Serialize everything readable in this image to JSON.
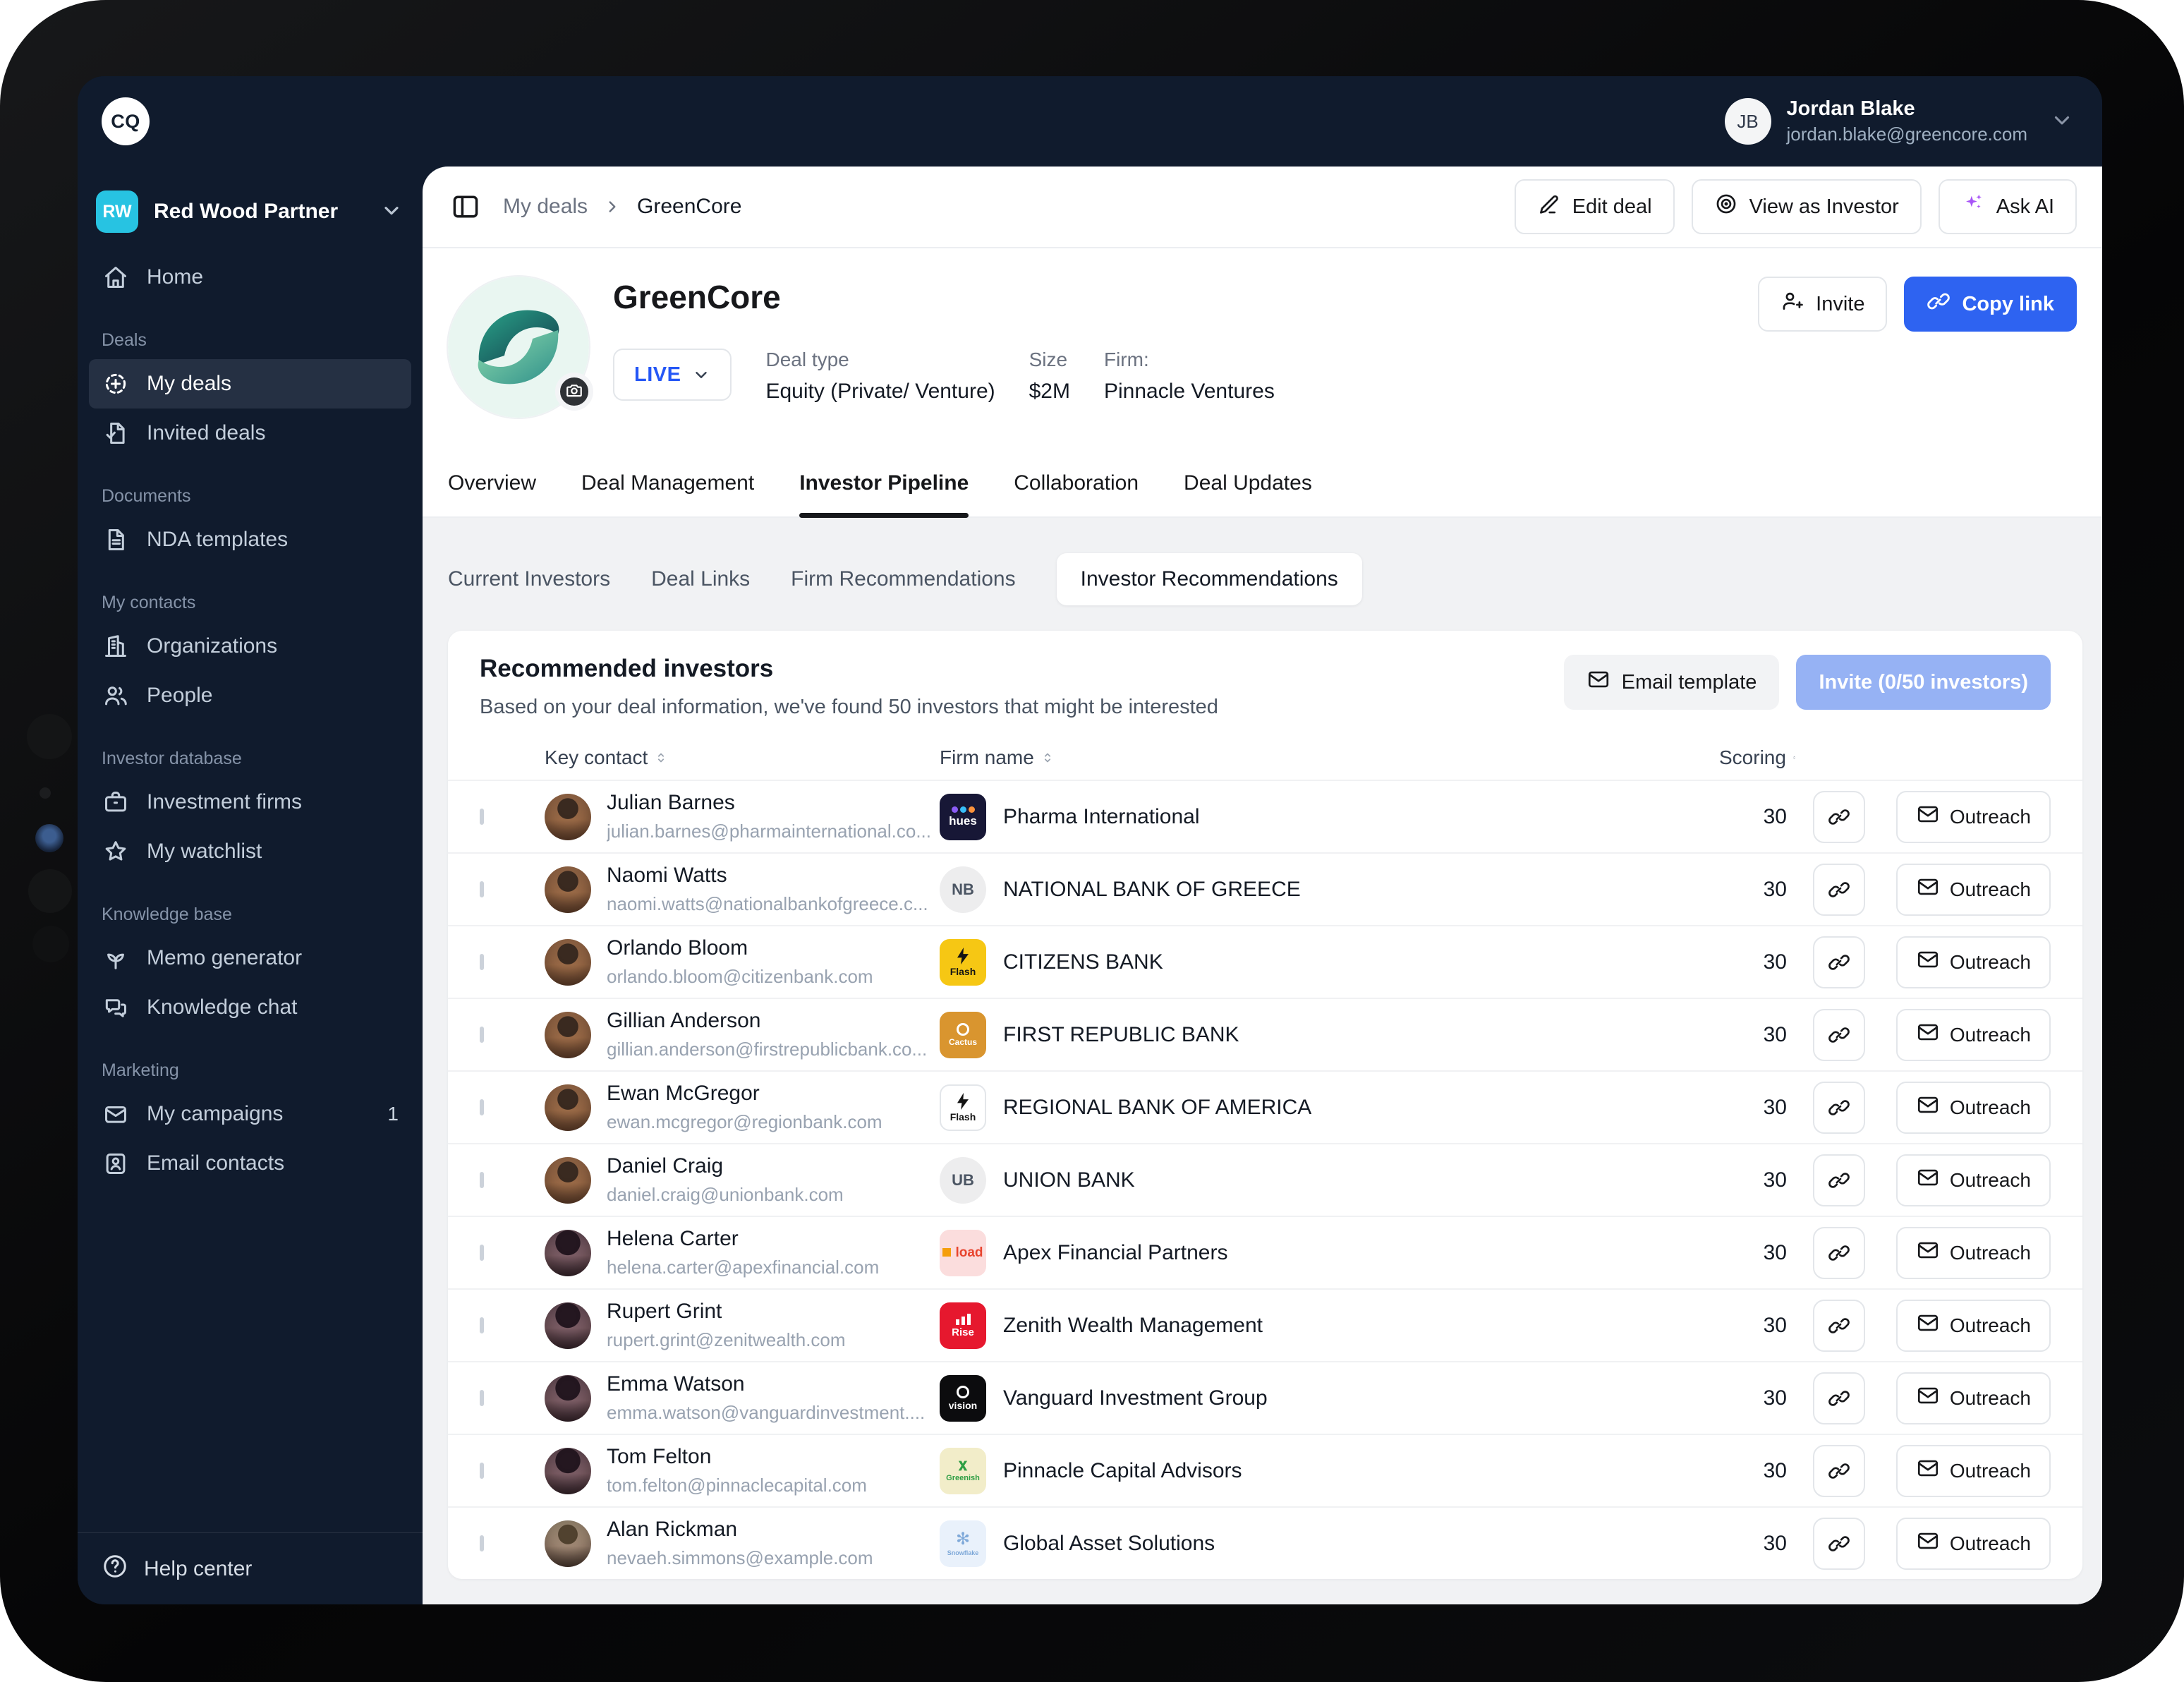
{
  "topbar": {
    "logo": "CQ",
    "user": {
      "initials": "JB",
      "name": "Jordan Blake",
      "email": "jordan.blake@greencore.com"
    }
  },
  "sidebar": {
    "workspace": {
      "initials": "RW",
      "name": "Red Wood Partner"
    },
    "sections": [
      {
        "label": "",
        "items": [
          {
            "icon": "home",
            "label": "Home"
          }
        ]
      },
      {
        "label": "Deals",
        "items": [
          {
            "icon": "deal",
            "label": "My deals",
            "active": true
          },
          {
            "icon": "invited",
            "label": "Invited deals"
          }
        ]
      },
      {
        "label": "Documents",
        "items": [
          {
            "icon": "doc",
            "label": "NDA templates"
          }
        ]
      },
      {
        "label": "My contacts",
        "items": [
          {
            "icon": "org",
            "label": "Organizations"
          },
          {
            "icon": "people",
            "label": "People"
          }
        ]
      },
      {
        "label": "Investor database",
        "items": [
          {
            "icon": "briefcase",
            "label": "Investment firms"
          },
          {
            "icon": "star",
            "label": "My watchlist"
          }
        ]
      },
      {
        "label": "Knowledge base",
        "items": [
          {
            "icon": "plant",
            "label": "Memo generator"
          },
          {
            "icon": "chat",
            "label": "Knowledge chat"
          }
        ]
      },
      {
        "label": "Marketing",
        "items": [
          {
            "icon": "mail",
            "label": "My campaigns",
            "badge": "1"
          },
          {
            "icon": "contact",
            "label": "Email contacts"
          }
        ]
      }
    ],
    "footer": {
      "label": "Help center"
    }
  },
  "breadcrumb": {
    "parent": "My deals",
    "current": "GreenCore"
  },
  "header_actions": {
    "edit": "Edit deal",
    "view": "View as Investor",
    "ask": "Ask AI"
  },
  "deal": {
    "name": "GreenCore",
    "status": "LIVE",
    "meta": [
      {
        "label": "Deal type",
        "value": "Equity (Private/ Venture)"
      },
      {
        "label": "Size",
        "value": "$2M"
      },
      {
        "label": "Firm:",
        "value": "Pinnacle Ventures"
      }
    ],
    "invite": "Invite",
    "copy_link": "Copy link"
  },
  "tabs": {
    "items": [
      "Overview",
      "Deal Management",
      "Investor Pipeline",
      "Collaboration",
      "Deal Updates"
    ],
    "active": 2
  },
  "subtabs": {
    "items": [
      "Current Investors",
      "Deal Links",
      "Firm Recommendations",
      "Investor Recommendations"
    ],
    "active": 3
  },
  "card": {
    "title": "Recommended investors",
    "subtitle": "Based on your deal information, we've found 50 investors that might be interested",
    "email_template": "Email template",
    "invite_button": "Invite (0/50 investors)"
  },
  "table": {
    "columns": [
      "Key contact",
      "Firm name",
      "Scoring"
    ],
    "outreach_label": "Outreach",
    "rows": [
      {
        "name": "Julian Barnes",
        "email": "julian.barnes@pharmainternational.co...",
        "firm": "Pharma International",
        "score": "30",
        "avatar": "man-a",
        "logo": {
          "shape": "square",
          "bg": "#171736",
          "color": "#ffffff",
          "text": "hues",
          "glyph": "petals",
          "fsize": 17
        }
      },
      {
        "name": "Naomi Watts",
        "email": "naomi.watts@nationalbankofgreece.c...",
        "firm": "NATIONAL BANK OF GREECE",
        "score": "30",
        "avatar": "man-a",
        "logo": {
          "shape": "circle",
          "bg": "#ededee",
          "color": "#4b5563",
          "text": "NB",
          "fsize": 22
        }
      },
      {
        "name": "Orlando Bloom",
        "email": "orlando.bloom@citizenbank.com",
        "firm": "CITIZENS BANK",
        "score": "30",
        "avatar": "man-a",
        "logo": {
          "shape": "square",
          "bg": "#f6c714",
          "color": "#141414",
          "text": "Flash",
          "glyph": "bolt",
          "fsize": 14
        }
      },
      {
        "name": "Gillian Anderson",
        "email": "gillian.anderson@firstrepublicbank.co...",
        "firm": "FIRST REPUBLIC BANK",
        "score": "30",
        "avatar": "man-a",
        "logo": {
          "shape": "square",
          "bg": "#d9952f",
          "color": "#ffffff",
          "text": "Cactus",
          "glyph": "ring",
          "fsize": 12
        }
      },
      {
        "name": "Ewan McGregor",
        "email": "ewan.mcgregor@regionbank.com",
        "firm": "REGIONAL BANK OF AMERICA",
        "score": "30",
        "avatar": "man-a",
        "logo": {
          "shape": "square",
          "bg": "#ffffff",
          "color": "#141414",
          "text": "Flash",
          "glyph": "bolt",
          "border": "#e3e6ea",
          "fsize": 14
        }
      },
      {
        "name": "Daniel Craig",
        "email": "daniel.craig@unionbank.com",
        "firm": "UNION BANK",
        "score": "30",
        "avatar": "man-a",
        "logo": {
          "shape": "circle",
          "bg": "#ededee",
          "color": "#4b5563",
          "text": "UB",
          "fsize": 22
        }
      },
      {
        "name": "Helena Carter",
        "email": "helena.carter@apexfinancial.com",
        "firm": "Apex Financial Partners",
        "score": "30",
        "avatar": "woman-a",
        "logo": {
          "shape": "square",
          "bg": "#fbdddd",
          "color": "#e8452f",
          "text": "load",
          "glyph": "chip",
          "fsize": 19
        }
      },
      {
        "name": "Rupert Grint",
        "email": "rupert.grint@zenitwealth.com",
        "firm": "Zenith Wealth Management",
        "score": "30",
        "avatar": "woman-a",
        "logo": {
          "shape": "square",
          "bg": "#e6182e",
          "color": "#ffffff",
          "text": "Rise",
          "glyph": "bars",
          "fsize": 15
        }
      },
      {
        "name": "Emma Watson",
        "email": "emma.watson@vanguardinvestment....",
        "firm": "Vanguard Investment Group",
        "score": "30",
        "avatar": "woman-a",
        "logo": {
          "shape": "square",
          "bg": "#0c0c0e",
          "color": "#ffffff",
          "text": "vision",
          "glyph": "ring",
          "fsize": 14
        }
      },
      {
        "name": "Tom Felton",
        "email": "tom.felton@pinnaclecapital.com",
        "firm": "Pinnacle Capital Advisors",
        "score": "30",
        "avatar": "woman-a",
        "logo": {
          "shape": "square",
          "bg": "#f2edc9",
          "color": "#2e9e44",
          "text": "Greenish",
          "glyph": "sprout",
          "fsize": 11
        }
      },
      {
        "name": "Alan Rickman",
        "email": "nevaeh.simmons@example.com",
        "firm": "Global Asset Solutions",
        "score": "30",
        "avatar": "man-b",
        "logo": {
          "shape": "square",
          "bg": "#e9f1fb",
          "color": "#7fa9d9",
          "text": "Snowflake",
          "glyph": "snow",
          "fsize": 9
        }
      }
    ]
  },
  "colors": {
    "accent_blue": "#2e63f1",
    "live_blue": "#2557f6",
    "ai_purple": "#a855f7",
    "workspace_teal": "#27c3e2",
    "navy": "#101b2d"
  }
}
